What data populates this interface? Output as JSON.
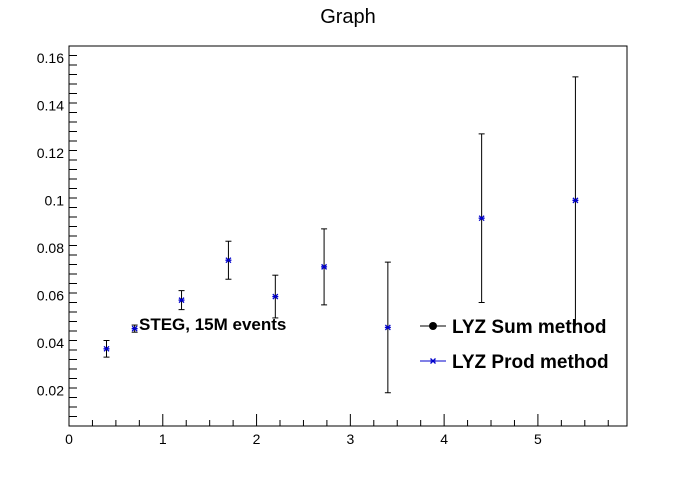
{
  "chart_data": {
    "type": "scatter",
    "title": "Graph",
    "xlabel": "",
    "ylabel": "",
    "xlim": [
      0,
      5.95
    ],
    "ylim": [
      0.005,
      0.165
    ],
    "x_ticks": [
      0,
      1,
      2,
      3,
      4,
      5
    ],
    "x_tick_labels": [
      "0",
      "1",
      "2",
      "3",
      "4",
      "5"
    ],
    "y_ticks": [
      0.02,
      0.04,
      0.06,
      0.08,
      0.1,
      0.12,
      0.14,
      0.16
    ],
    "y_tick_labels": [
      "0.02",
      "0.04",
      "0.06",
      "0.08",
      "0.1",
      "0.12",
      "0.14",
      "0.16"
    ],
    "grid": false,
    "legend_position": "bottom-right",
    "annotation": "STEG, 15M events",
    "series": [
      {
        "name": "LYZ Sum method",
        "color": "#000000",
        "marker": "circle",
        "points": []
      },
      {
        "name": "LYZ Prod method",
        "color": "#0000cc",
        "marker": "star",
        "points": [
          {
            "x": 0.4,
            "y": 0.0375,
            "err": 0.0035
          },
          {
            "x": 0.7,
            "y": 0.046,
            "err": 0.0015
          },
          {
            "x": 1.2,
            "y": 0.058,
            "err": 0.004
          },
          {
            "x": 1.7,
            "y": 0.0748,
            "err": 0.008
          },
          {
            "x": 2.2,
            "y": 0.0595,
            "err": 0.009
          },
          {
            "x": 2.72,
            "y": 0.072,
            "err": 0.016
          },
          {
            "x": 3.4,
            "y": 0.0465,
            "err": 0.0275
          },
          {
            "x": 4.4,
            "y": 0.0925,
            "err": 0.0355
          },
          {
            "x": 5.4,
            "y": 0.1,
            "err": 0.052
          }
        ]
      }
    ]
  }
}
